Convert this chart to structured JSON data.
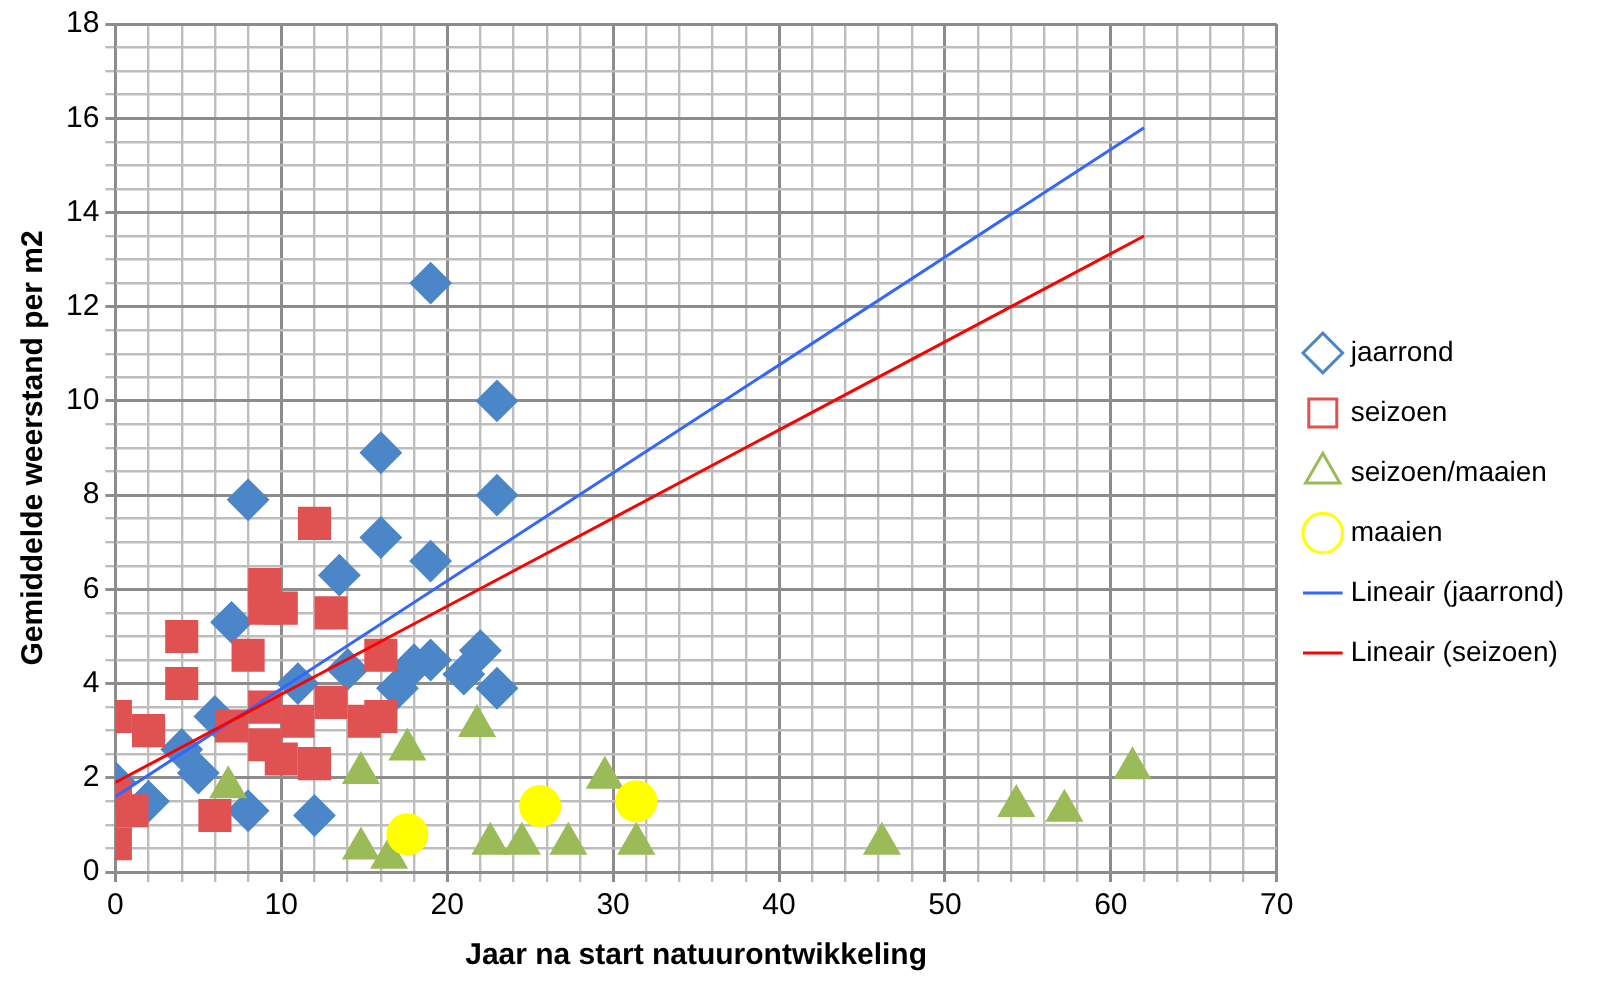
{
  "chart_data": {
    "type": "scatter",
    "xlabel": "Jaar na start natuurontwikkeling",
    "ylabel": "Gemiddelde weerstand per m2",
    "xlim": [
      0,
      70
    ],
    "ylim": [
      0,
      18
    ],
    "xticks": [
      0,
      {
        "value": 2,
        "label": null
      },
      {
        "value": 4,
        "label": null
      },
      {
        "value": 6,
        "label": null
      },
      {
        "value": 8,
        "label": null
      },
      10,
      {
        "value": 12,
        "label": null
      },
      {
        "value": 14,
        "label": null
      },
      {
        "value": 16,
        "label": null
      },
      {
        "value": 18,
        "label": null
      },
      20,
      {
        "value": 22,
        "label": null
      },
      {
        "value": 24,
        "label": null
      },
      {
        "value": 26,
        "label": null
      },
      {
        "value": 28,
        "label": null
      },
      30,
      {
        "value": 32,
        "label": null
      },
      {
        "value": 34,
        "label": null
      },
      {
        "value": 36,
        "label": null
      },
      {
        "value": 38,
        "label": null
      },
      40,
      {
        "value": 42,
        "label": null
      },
      {
        "value": 44,
        "label": null
      },
      {
        "value": 46,
        "label": null
      },
      {
        "value": 48,
        "label": null
      },
      50,
      {
        "value": 52,
        "label": null
      },
      {
        "value": 54,
        "label": null
      },
      {
        "value": 56,
        "label": null
      },
      {
        "value": 58,
        "label": null
      },
      60,
      {
        "value": 62,
        "label": null
      },
      {
        "value": 64,
        "label": null
      },
      {
        "value": 66,
        "label": null
      },
      {
        "value": 68,
        "label": null
      },
      70
    ],
    "yticks": [
      0,
      {
        "value": 0.5,
        "label": null
      },
      {
        "value": 1,
        "label": null
      },
      {
        "value": 1.5,
        "label": null
      },
      2,
      {
        "value": 2.5,
        "label": null
      },
      {
        "value": 3,
        "label": null
      },
      {
        "value": 3.5,
        "label": null
      },
      4,
      {
        "value": 4.5,
        "label": null
      },
      {
        "value": 5,
        "label": null
      },
      {
        "value": 5.5,
        "label": null
      },
      6,
      {
        "value": 6.5,
        "label": null
      },
      {
        "value": 7,
        "label": null
      },
      {
        "value": 7.5,
        "label": null
      },
      8,
      {
        "value": 8.5,
        "label": null
      },
      {
        "value": 9,
        "label": null
      },
      {
        "value": 9.5,
        "label": null
      },
      10,
      {
        "value": 10.5,
        "label": null
      },
      {
        "value": 11,
        "label": null
      },
      {
        "value": 11.5,
        "label": null
      },
      12,
      {
        "value": 12.5,
        "label": null
      },
      {
        "value": 13,
        "label": null
      },
      {
        "value": 13.5,
        "label": null
      },
      14,
      {
        "value": 14.5,
        "label": null
      },
      {
        "value": 15,
        "label": null
      },
      {
        "value": 15.5,
        "label": null
      },
      16,
      {
        "value": 16.5,
        "label": null
      },
      {
        "value": 17,
        "label": null
      },
      {
        "value": 17.5,
        "label": null
      },
      18
    ],
    "grid": true,
    "legend": "right",
    "series": [
      {
        "name": "jaarrond",
        "type": "scatter",
        "marker": "diamond",
        "color": "#4a86c8",
        "x": [
          19,
          23,
          16,
          8,
          23,
          16,
          19,
          13.5,
          19,
          21,
          22,
          23,
          12,
          8,
          5,
          0,
          11,
          14,
          6,
          17,
          18,
          7,
          4,
          2
        ],
        "values": [
          12.5,
          10,
          8.9,
          7.9,
          8,
          7.1,
          6.6,
          6.3,
          4.5,
          4.2,
          4.7,
          3.9,
          1.2,
          1.3,
          2.1,
          1.9,
          4,
          4.3,
          3.3,
          3.9,
          4.4,
          5.3,
          2.6,
          1.5
        ]
      },
      {
        "name": "seizoen",
        "type": "scatter",
        "marker": "square",
        "color": "#e05252",
        "x": [
          0,
          0,
          0,
          1,
          2,
          4,
          4,
          6,
          8,
          9,
          9,
          9,
          9,
          10,
          10,
          12,
          12,
          13,
          13,
          15,
          16,
          16,
          11,
          7
        ],
        "values": [
          3.3,
          1.6,
          0.6,
          1.3,
          3,
          5,
          4,
          1.2,
          4.6,
          6.1,
          5.6,
          3.5,
          2.7,
          2.4,
          5.6,
          7.4,
          2.3,
          5.5,
          3.6,
          3.2,
          4.6,
          3.3,
          3.2,
          3.1
        ]
      },
      {
        "name": "seizoen/maaien",
        "type": "scatter",
        "marker": "triangle",
        "color": "#9bbb59",
        "x": [
          6.8,
          14.8,
          14.8,
          16.5,
          17.6,
          21.8,
          22.6,
          24.5,
          27.3,
          29.5,
          31.4,
          46.2,
          54.3,
          57.2,
          61.3
        ],
        "values": [
          1.8,
          2.1,
          0.5,
          0.3,
          2.6,
          3.1,
          0.6,
          0.6,
          0.6,
          2,
          0.6,
          0.6,
          1.4,
          1.3,
          2.2
        ]
      },
      {
        "name": "maaien",
        "type": "scatter",
        "marker": "circle",
        "color": "#ffff00",
        "x": [
          17.6,
          25.6,
          31.4
        ],
        "values": [
          0.8,
          1.4,
          1.5
        ]
      },
      {
        "name": "Lineair (jaarrond)",
        "type": "line",
        "marker": "none",
        "color": "#3366ff",
        "x": [
          0,
          62
        ],
        "values": [
          1.6,
          15.8
        ]
      },
      {
        "name": "Lineair (seizoen)",
        "type": "line",
        "marker": "none",
        "color": "#ff0000",
        "x": [
          0,
          62
        ],
        "values": [
          1.9,
          13.5
        ]
      }
    ]
  }
}
